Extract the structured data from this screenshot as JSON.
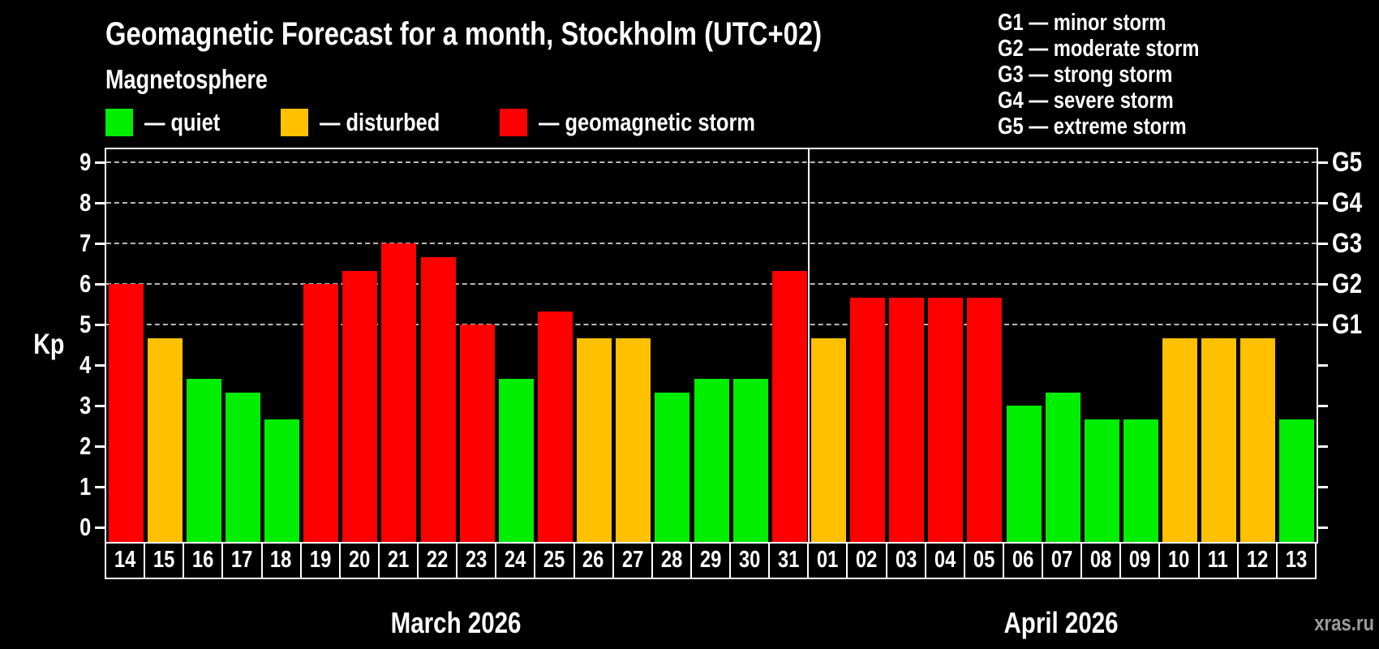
{
  "title": "Geomagnetic Forecast for a month, Stockholm (UTC+02)",
  "subtitle": "Magnetosphere",
  "watermark": "xras.ru",
  "levels": {
    "quiet": {
      "label": "— quiet",
      "color": "#00ee00"
    },
    "disturbed": {
      "label": "— disturbed",
      "color": "#ffc000"
    },
    "storm": {
      "label": "— geomagnetic storm",
      "color": "#ff0000"
    }
  },
  "g_scale_legend": [
    "G1 — minor storm",
    "G2 — moderate storm",
    "G3 — strong storm",
    "G4 — severe storm",
    "G5 — extreme storm"
  ],
  "chart_data": {
    "type": "bar",
    "ylabel": "Kp",
    "ylim": [
      0,
      9
    ],
    "yticks": [
      0,
      1,
      2,
      3,
      4,
      5,
      6,
      7,
      8,
      9
    ],
    "gridlines_at_kp": [
      5,
      6,
      7,
      8,
      9
    ],
    "grid": true,
    "right_axis": [
      {
        "kp": 5,
        "label": "G1"
      },
      {
        "kp": 6,
        "label": "G2"
      },
      {
        "kp": 7,
        "label": "G3"
      },
      {
        "kp": 8,
        "label": "G4"
      },
      {
        "kp": 9,
        "label": "G5"
      }
    ],
    "months": [
      {
        "label": "March 2026",
        "start_index": 0,
        "num_days": 18
      },
      {
        "label": "April 2026",
        "start_index": 18,
        "num_days": 13
      }
    ],
    "bars": [
      {
        "day": "14",
        "month": "mar",
        "kp": 6.0,
        "level": "storm"
      },
      {
        "day": "15",
        "month": "mar",
        "kp": 4.67,
        "level": "disturbed"
      },
      {
        "day": "16",
        "month": "mar",
        "kp": 3.67,
        "level": "quiet"
      },
      {
        "day": "17",
        "month": "mar",
        "kp": 3.33,
        "level": "quiet"
      },
      {
        "day": "18",
        "month": "mar",
        "kp": 2.67,
        "level": "quiet"
      },
      {
        "day": "19",
        "month": "mar",
        "kp": 6.0,
        "level": "storm"
      },
      {
        "day": "20",
        "month": "mar",
        "kp": 6.33,
        "level": "storm"
      },
      {
        "day": "21",
        "month": "mar",
        "kp": 7.0,
        "level": "storm"
      },
      {
        "day": "22",
        "month": "mar",
        "kp": 6.67,
        "level": "storm"
      },
      {
        "day": "23",
        "month": "mar",
        "kp": 5.0,
        "level": "storm"
      },
      {
        "day": "24",
        "month": "mar",
        "kp": 3.67,
        "level": "quiet"
      },
      {
        "day": "25",
        "month": "mar",
        "kp": 5.33,
        "level": "storm"
      },
      {
        "day": "26",
        "month": "mar",
        "kp": 4.67,
        "level": "disturbed"
      },
      {
        "day": "27",
        "month": "mar",
        "kp": 4.67,
        "level": "disturbed"
      },
      {
        "day": "28",
        "month": "mar",
        "kp": 3.33,
        "level": "quiet"
      },
      {
        "day": "29",
        "month": "mar",
        "kp": 3.67,
        "level": "quiet"
      },
      {
        "day": "30",
        "month": "mar",
        "kp": 3.67,
        "level": "quiet"
      },
      {
        "day": "31",
        "month": "mar",
        "kp": 6.33,
        "level": "storm"
      },
      {
        "day": "01",
        "month": "apr",
        "kp": 4.67,
        "level": "disturbed"
      },
      {
        "day": "02",
        "month": "apr",
        "kp": 5.67,
        "level": "storm"
      },
      {
        "day": "03",
        "month": "apr",
        "kp": 5.67,
        "level": "storm"
      },
      {
        "day": "04",
        "month": "apr",
        "kp": 5.67,
        "level": "storm"
      },
      {
        "day": "05",
        "month": "apr",
        "kp": 5.67,
        "level": "storm"
      },
      {
        "day": "06",
        "month": "apr",
        "kp": 3.0,
        "level": "quiet"
      },
      {
        "day": "07",
        "month": "apr",
        "kp": 3.33,
        "level": "quiet"
      },
      {
        "day": "08",
        "month": "apr",
        "kp": 2.67,
        "level": "quiet"
      },
      {
        "day": "09",
        "month": "apr",
        "kp": 2.67,
        "level": "quiet"
      },
      {
        "day": "10",
        "month": "apr",
        "kp": 4.67,
        "level": "disturbed"
      },
      {
        "day": "11",
        "month": "apr",
        "kp": 4.67,
        "level": "disturbed"
      },
      {
        "day": "12",
        "month": "apr",
        "kp": 4.67,
        "level": "disturbed"
      },
      {
        "day": "13",
        "month": "apr",
        "kp": 2.67,
        "level": "quiet"
      }
    ]
  }
}
